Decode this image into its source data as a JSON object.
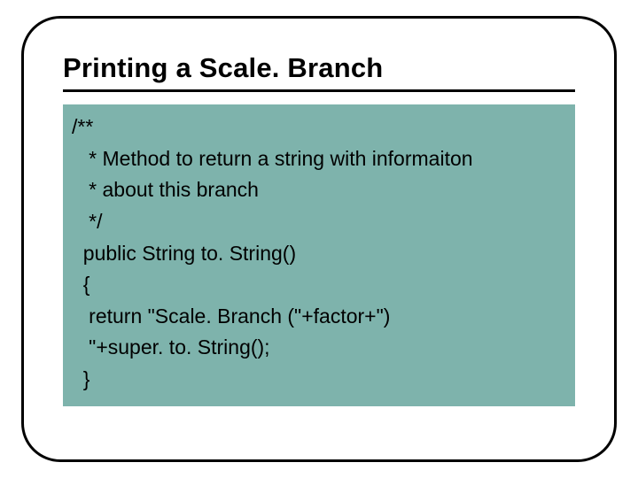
{
  "slide": {
    "title": "Printing a Scale. Branch",
    "title_fontsize": 31,
    "title_color": "#000000",
    "rule_color": "#000000",
    "rule_thickness": 3,
    "frame_border_color": "#000000",
    "frame_border_radius": 44,
    "background_color": "#ffffff",
    "code_block": {
      "background_color": "#7eb3ac",
      "text_color": "#000000",
      "font_family": "Arial",
      "font_size": 23,
      "line_height": 1.55,
      "lines": [
        "/**",
        "   * Method to return a string with informaiton",
        "   * about this branch",
        "   */",
        "  public String to. String()",
        "  {",
        "   return \"Scale. Branch (\"+factor+\")",
        "   \"+super. to. String();",
        "  }"
      ]
    }
  }
}
